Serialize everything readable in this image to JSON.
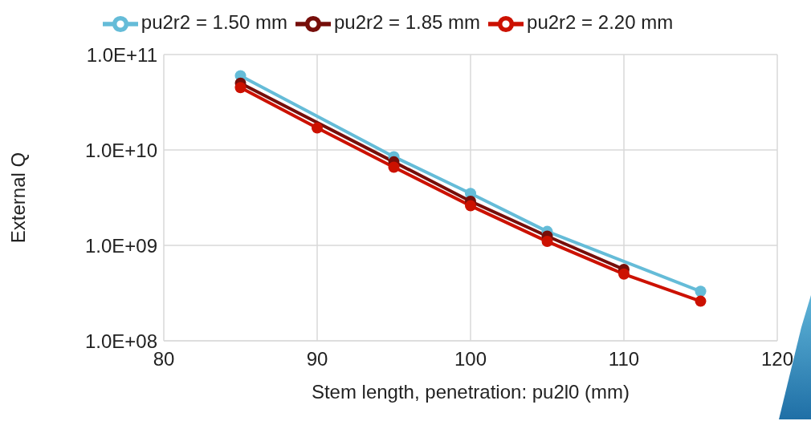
{
  "chart_data": {
    "type": "line",
    "xlabel": "Stem length, penetration: pu2l0 (mm)",
    "ylabel": "External Q",
    "series": [
      {
        "name": "pu2r2 = 1.50 mm",
        "color": "#65bcd8",
        "x": [
          85,
          95,
          100,
          105,
          115
        ],
        "values": [
          60000000000.0,
          8500000000.0,
          3500000000.0,
          1400000000.0,
          330000000.0
        ]
      },
      {
        "name": "pu2r2 = 1.85 mm",
        "color": "#760e0a",
        "x": [
          85,
          95,
          100,
          105,
          110
        ],
        "values": [
          50000000000.0,
          7500000000.0,
          2900000000.0,
          1250000000.0,
          560000000.0
        ]
      },
      {
        "name": "pu2r2 = 2.20 mm",
        "color": "#cc1100",
        "x": [
          85,
          90,
          95,
          100,
          105,
          110,
          115
        ],
        "values": [
          45000000000.0,
          17000000000.0,
          6600000000.0,
          2600000000.0,
          1100000000.0,
          500000000.0,
          260000000.0
        ]
      }
    ],
    "xlim": [
      80,
      120
    ],
    "xticks": [
      80,
      90,
      100,
      110,
      120
    ],
    "ylim": [
      100000000.0,
      100000000000.0
    ],
    "yticks": [
      {
        "value": 100000000.0,
        "label": "1.0E+08"
      },
      {
        "value": 1000000000.0,
        "label": "1.0E+09"
      },
      {
        "value": 10000000000.0,
        "label": "1.0E+10"
      },
      {
        "value": 100000000000.0,
        "label": "1.0E+11"
      }
    ],
    "log": true,
    "grid": true,
    "legend": "top",
    "marker": "circle",
    "line_style": "solid"
  }
}
